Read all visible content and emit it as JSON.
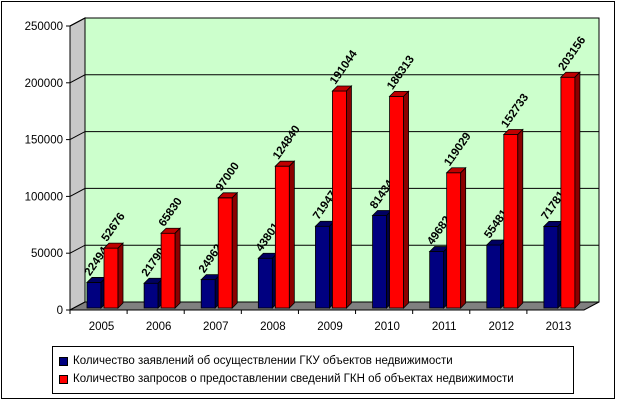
{
  "chart_data": {
    "type": "bar",
    "categories": [
      "2005",
      "2006",
      "2007",
      "2008",
      "2009",
      "2010",
      "2011",
      "2012",
      "2013"
    ],
    "series": [
      {
        "name": "Количество заявлений об осуществлении ГКУ объектов недвижимости",
        "color": "#000080",
        "values": [
          22494,
          21790,
          24962,
          43801,
          71947,
          81434,
          49682,
          55481,
          71781
        ],
        "labels": [
          "22494",
          "21790",
          "24962",
          "43801",
          "71947",
          "81434",
          "49682",
          "55481",
          "71781"
        ]
      },
      {
        "name": "Количество запросов о предоставлении сведений ГКН об объектах недвижимости",
        "color": "#ff0000",
        "values": [
          52676,
          65830,
          97000,
          124840,
          191044,
          186313,
          119029,
          152733,
          203156
        ],
        "labels": [
          "52676",
          "65830",
          "97000",
          "124840",
          "191044",
          "186313",
          "119029",
          "152733",
          "203156"
        ]
      }
    ],
    "ylim": [
      0,
      250000
    ],
    "yticks": [
      "0",
      "50000",
      "100000",
      "150000",
      "200000",
      "250000"
    ],
    "grid": true,
    "legend_position": "bottom",
    "plot_background": "#ccffcc"
  }
}
